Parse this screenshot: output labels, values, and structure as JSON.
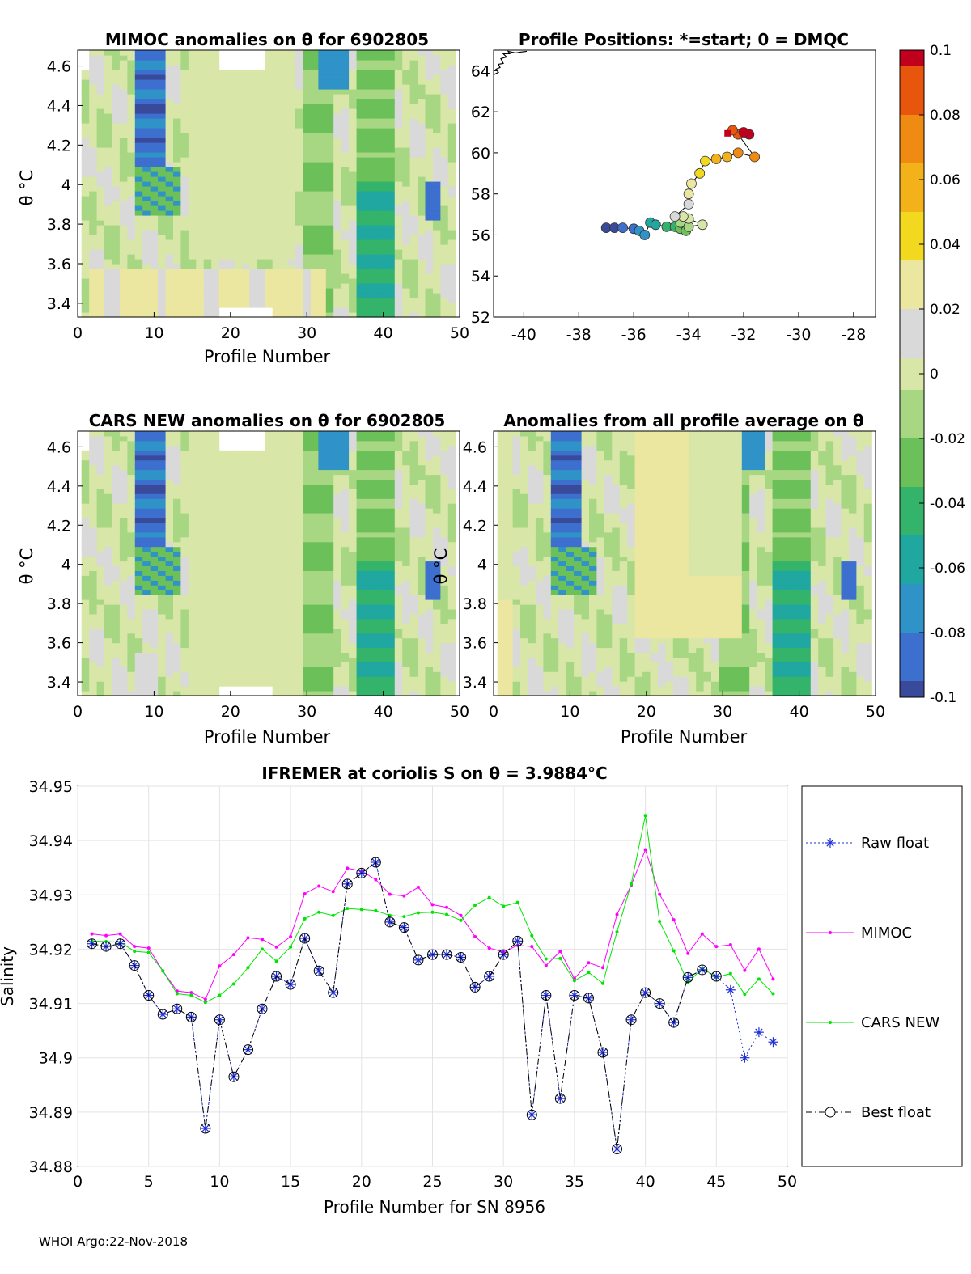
{
  "footer": "WHOI Argo:22-Nov-2018",
  "colormap": [
    "#3a4a9a",
    "#3d6fcf",
    "#2f93c8",
    "#1fa7a0",
    "#34b36b",
    "#6cc05a",
    "#a8d784",
    "#d8e6a8",
    "#d9d9d9",
    "#ece7a0",
    "#f2d81e",
    "#f3b21a",
    "#ef8a12",
    "#e8560d",
    "#c0001c"
  ],
  "panels": {
    "mimoc": {
      "title": "MIMOC anomalies on θ  for 6902805",
      "xlabel": "Profile Number",
      "ylabel": "θ °C",
      "xticks": [
        "0",
        "10",
        "20",
        "30",
        "40",
        "50"
      ],
      "yticks": [
        "3.4",
        "3.6",
        "3.8",
        "4",
        "4.2",
        "4.4",
        "4.6"
      ]
    },
    "positions": {
      "title": "Profile Positions: *=start; 0 = DMQC",
      "xticks": [
        "-40",
        "-38",
        "-36",
        "-34",
        "-32",
        "-30",
        "-28"
      ],
      "yticks": [
        "52",
        "54",
        "56",
        "58",
        "60",
        "62",
        "64"
      ]
    },
    "cars": {
      "title": "CARS NEW anomalies on θ for 6902805",
      "xlabel": "Profile Number",
      "ylabel": "θ °C",
      "xticks": [
        "0",
        "10",
        "20",
        "30",
        "40",
        "50"
      ],
      "yticks": [
        "3.4",
        "3.6",
        "3.8",
        "4",
        "4.2",
        "4.4",
        "4.6"
      ]
    },
    "allavg": {
      "title": "Anomalies from all profile average on θ",
      "xlabel": "Profile Number",
      "ylabel": "θ °C",
      "xticks": [
        "0",
        "10",
        "20",
        "30",
        "40",
        "50"
      ],
      "yticks": [
        "3.4",
        "3.6",
        "3.8",
        "4",
        "4.2",
        "4.4",
        "4.6"
      ]
    },
    "colorbar": {
      "ticks": [
        "0.1",
        "0.08",
        "0.06",
        "0.04",
        "0.02",
        "0",
        "-0.02",
        "-0.04",
        "-0.06",
        "-0.08",
        "-0.1"
      ]
    }
  },
  "chart_data": {
    "type": "line",
    "title": "IFREMER at coriolis S on θ = 3.9884°C",
    "xlabel": "Profile Number for SN 8956",
    "ylabel": "Salinity",
    "xlim": [
      0,
      50
    ],
    "ylim": [
      34.88,
      34.95
    ],
    "xticks": [
      "0",
      "5",
      "10",
      "15",
      "20",
      "25",
      "30",
      "35",
      "40",
      "45",
      "50"
    ],
    "yticks": [
      "34.88",
      "34.89",
      "34.9",
      "34.91",
      "34.92",
      "34.93",
      "34.94",
      "34.95"
    ],
    "grid": true,
    "legend_position": "right-outside",
    "x": [
      1,
      2,
      3,
      4,
      5,
      6,
      7,
      8,
      9,
      10,
      11,
      12,
      13,
      14,
      15,
      16,
      17,
      18,
      19,
      20,
      21,
      22,
      23,
      24,
      25,
      26,
      27,
      28,
      29,
      30,
      31,
      32,
      33,
      34,
      35,
      36,
      37,
      38,
      39,
      40,
      41,
      42,
      43,
      44,
      45,
      46,
      47,
      48,
      49
    ],
    "series": [
      {
        "name": "Raw float",
        "values": [
          34.921,
          34.9205,
          34.921,
          34.917,
          34.9115,
          34.908,
          34.909,
          34.9075,
          34.887,
          34.907,
          34.8965,
          34.9015,
          34.909,
          34.915,
          34.9135,
          34.922,
          34.916,
          34.912,
          34.932,
          34.934,
          34.936,
          34.925,
          34.924,
          34.918,
          34.919,
          34.919,
          34.9185,
          34.913,
          34.915,
          34.919,
          34.9215,
          34.8895,
          34.9115,
          34.8925,
          34.9115,
          34.911,
          34.901,
          34.8832,
          34.907,
          34.912,
          34.91,
          34.9065,
          34.9148,
          34.9162,
          34.915,
          34.9125,
          34.9,
          34.9047,
          34.9029
        ]
      },
      {
        "name": "MIMOC",
        "values": [
          34.9228,
          34.9225,
          34.9228,
          34.9205,
          34.9202,
          34.916,
          34.9123,
          34.912,
          34.9108,
          34.9169,
          34.919,
          34.9221,
          34.9218,
          34.9204,
          34.9223,
          34.9302,
          34.9316,
          34.9306,
          34.9349,
          34.9344,
          34.9328,
          34.9301,
          34.9298,
          34.9314,
          34.9282,
          34.9277,
          34.9262,
          34.9223,
          34.9202,
          34.9195,
          34.9207,
          34.9205,
          34.917,
          34.9196,
          34.9146,
          34.9175,
          34.9166,
          34.9264,
          34.9318,
          34.9383,
          34.9301,
          34.9254,
          34.9192,
          34.9228,
          34.9205,
          34.9208,
          34.9161,
          34.92,
          34.9145
        ]
      },
      {
        "name": "CARS NEW",
        "values": [
          34.9215,
          34.9214,
          34.9213,
          34.9196,
          34.9194,
          34.916,
          34.9118,
          34.9115,
          34.9102,
          34.9115,
          34.9136,
          34.9166,
          34.92,
          34.9178,
          34.9204,
          34.9256,
          34.9268,
          34.9262,
          34.9275,
          34.9273,
          34.9271,
          34.9262,
          34.926,
          34.9267,
          34.9268,
          34.9264,
          34.9253,
          34.9281,
          34.9295,
          34.9279,
          34.9286,
          34.9225,
          34.9182,
          34.9183,
          34.9142,
          34.9157,
          34.9137,
          34.9232,
          34.932,
          34.9446,
          34.9251,
          34.9197,
          34.9138,
          34.9165,
          34.9148,
          34.9155,
          34.9117,
          34.9145,
          34.9118
        ]
      },
      {
        "name": "Best float",
        "values": [
          34.921,
          34.9205,
          34.921,
          34.917,
          34.9115,
          34.908,
          34.909,
          34.9075,
          34.887,
          34.907,
          34.8965,
          34.9015,
          34.909,
          34.915,
          34.9135,
          34.922,
          34.916,
          34.912,
          34.932,
          34.934,
          34.936,
          34.925,
          34.924,
          34.918,
          34.919,
          34.919,
          34.9185,
          34.913,
          34.915,
          34.919,
          34.9215,
          34.8895,
          34.9115,
          34.8925,
          34.9115,
          34.911,
          34.901,
          34.8832,
          34.907,
          34.912,
          34.91,
          34.9065,
          34.9148,
          34.9162,
          34.915,
          null,
          null,
          null,
          null
        ]
      }
    ]
  }
}
